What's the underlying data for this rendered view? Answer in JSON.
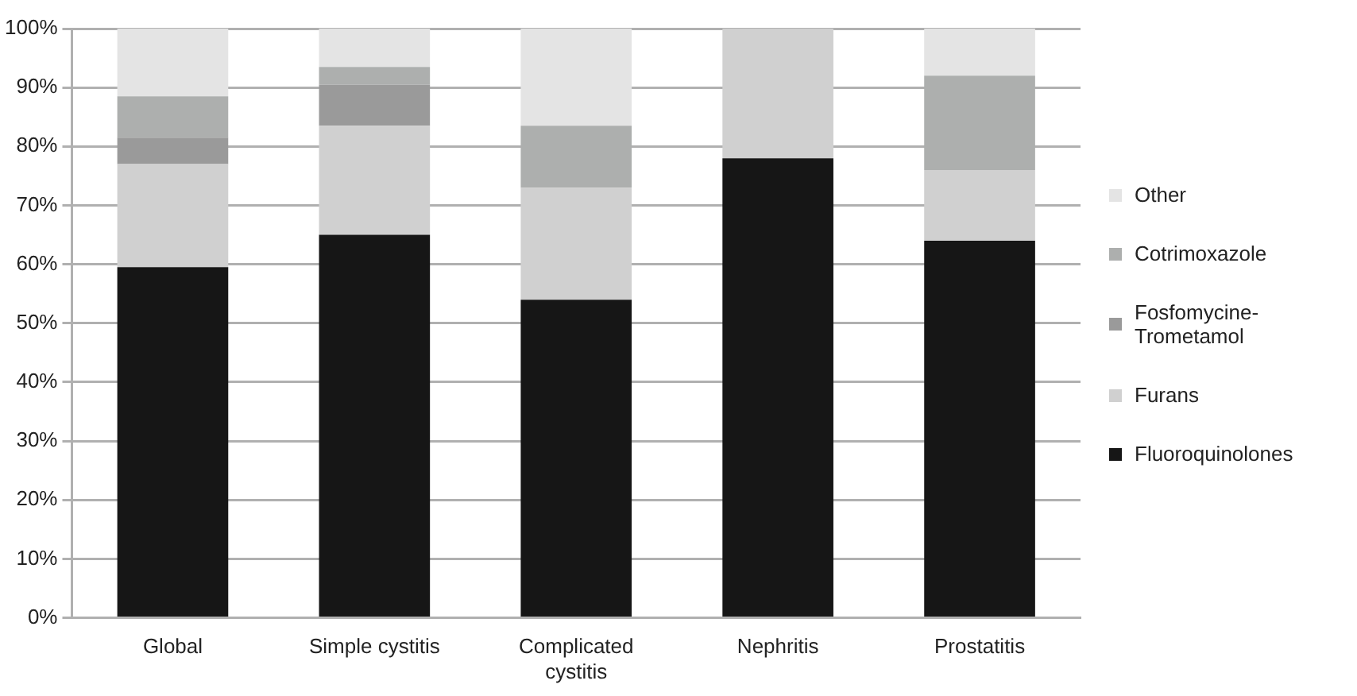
{
  "chart_data": {
    "type": "bar",
    "stacked": true,
    "categories": [
      "Global",
      "Simple cystitis",
      "Complicated cystitis",
      "Nephritis",
      "Prostatitis"
    ],
    "series": [
      {
        "name": "Fluoroquinolones",
        "color": "#161616",
        "values": [
          59.5,
          65,
          54,
          78,
          64
        ]
      },
      {
        "name": "Furans",
        "color": "#d0d0d0",
        "values": [
          17.5,
          18.5,
          19,
          22,
          12
        ]
      },
      {
        "name": "Fosfomycine-Trometamol",
        "color": "#9a9a9a",
        "values": [
          4.5,
          7,
          0,
          0,
          0
        ]
      },
      {
        "name": "Cotrimoxazole",
        "color": "#adafae",
        "values": [
          7,
          3,
          10.5,
          0,
          16
        ]
      },
      {
        "name": "Other",
        "color": "#e4e4e4",
        "values": [
          11.5,
          6.5,
          16.5,
          0,
          8
        ]
      }
    ],
    "ylim": [
      0,
      100
    ],
    "yticks": [
      {
        "value": 0,
        "label": "0%"
      },
      {
        "value": 10,
        "label": "10%"
      },
      {
        "value": 20,
        "label": "20%"
      },
      {
        "value": 30,
        "label": "30%"
      },
      {
        "value": 40,
        "label": "40%"
      },
      {
        "value": 50,
        "label": "50%"
      },
      {
        "value": 60,
        "label": "60%"
      },
      {
        "value": 70,
        "label": "70%"
      },
      {
        "value": 80,
        "label": "80%"
      },
      {
        "value": 90,
        "label": "90%"
      },
      {
        "value": 100,
        "label": "100%"
      }
    ],
    "grid": "y",
    "legend": "right"
  }
}
